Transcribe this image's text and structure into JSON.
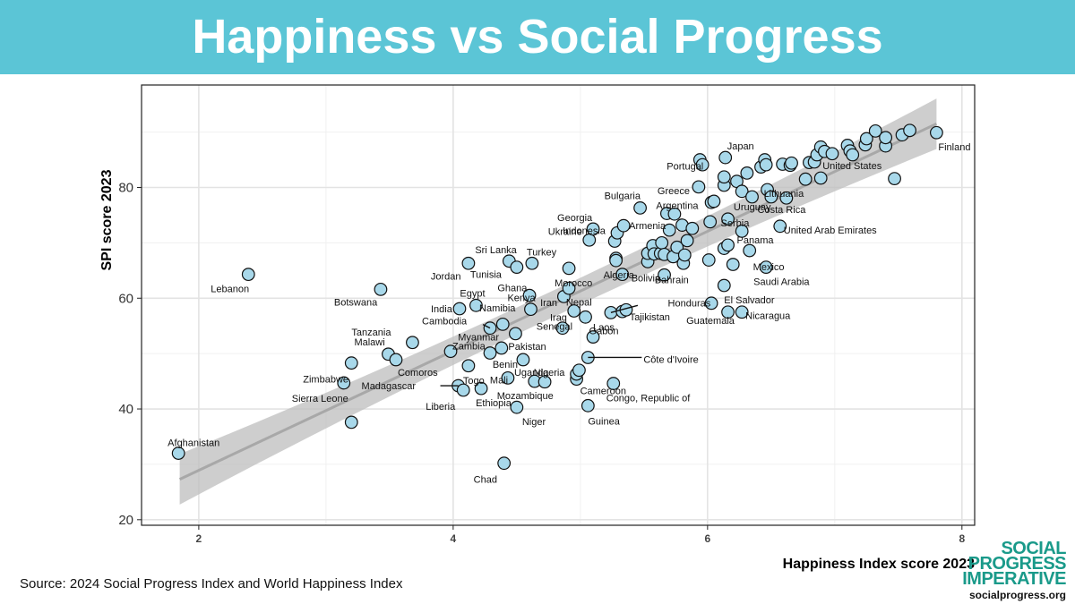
{
  "banner": {
    "title": "Happiness vs Social Progress",
    "color": "#5bc5d6"
  },
  "footer": {
    "source": "Source: 2024 Social Progress Index and World Happiness Index"
  },
  "logo": {
    "line1": "SOCIAL",
    "line2": "PROGRESS",
    "line3": "IMPERATIVE",
    "url": "socialprogress.org",
    "color": "#1a9a8a"
  },
  "chart_data": {
    "type": "scatter",
    "xlabel": "Happiness Index score 2023",
    "ylabel": "SPI score 2023",
    "xlim": [
      1.55,
      8.1
    ],
    "ylim": [
      19,
      98.5
    ],
    "xticks": [
      2,
      4,
      6,
      8
    ],
    "yticks": [
      20,
      40,
      60,
      80
    ],
    "grid": true,
    "point_color": "#a8d8ea",
    "trend": {
      "x": [
        1.85,
        7.8
      ],
      "y": [
        27.3,
        91.5
      ],
      "band": 2.4
    },
    "points": [
      {
        "x": 1.84,
        "y": 32.0,
        "label": "Afghanistan"
      },
      {
        "x": 2.39,
        "y": 64.3,
        "label": "Lebanon"
      },
      {
        "x": 3.14,
        "y": 44.7,
        "label": "Sierra Leone"
      },
      {
        "x": 3.2,
        "y": 48.3,
        "label": "Zimbabwe"
      },
      {
        "x": 3.2,
        "y": 37.6,
        "label": ""
      },
      {
        "x": 3.43,
        "y": 61.6,
        "label": "Botswana"
      },
      {
        "x": 3.49,
        "y": 49.9,
        "label": "Malawi"
      },
      {
        "x": 3.55,
        "y": 48.9,
        "label": "Comoros"
      },
      {
        "x": 3.68,
        "y": 52.0,
        "label": "Tanzania"
      },
      {
        "x": 3.98,
        "y": 50.4,
        "label": ""
      },
      {
        "x": 4.04,
        "y": 44.2,
        "label": "Madagascar"
      },
      {
        "x": 4.08,
        "y": 43.4,
        "label": "Liberia"
      },
      {
        "x": 4.05,
        "y": 58.1,
        "label": "India"
      },
      {
        "x": 4.12,
        "y": 47.8,
        "label": "Togo"
      },
      {
        "x": 4.12,
        "y": 66.3,
        "label": "Jordan"
      },
      {
        "x": 4.18,
        "y": 58.7,
        "label": "Egypt"
      },
      {
        "x": 4.22,
        "y": 43.7,
        "label": "Ethiopia"
      },
      {
        "x": 4.29,
        "y": 50.1,
        "label": "Zambia"
      },
      {
        "x": 4.29,
        "y": 54.6,
        "label": "Cambodia"
      },
      {
        "x": 4.38,
        "y": 51.0,
        "label": "Benin"
      },
      {
        "x": 4.39,
        "y": 55.3,
        "label": "Myanmar"
      },
      {
        "x": 4.4,
        "y": 30.2,
        "label": "Chad"
      },
      {
        "x": 4.43,
        "y": 45.6,
        "label": "Mali"
      },
      {
        "x": 4.44,
        "y": 66.7,
        "label": "Sri Lanka"
      },
      {
        "x": 4.5,
        "y": 65.6,
        "label": "Tunisia"
      },
      {
        "x": 4.5,
        "y": 40.3,
        "label": "Niger"
      },
      {
        "x": 4.49,
        "y": 53.6,
        "label": "Pakistan"
      },
      {
        "x": 4.55,
        "y": 48.9,
        "label": "Uganda"
      },
      {
        "x": 4.6,
        "y": 60.5,
        "label": "Namibia"
      },
      {
        "x": 4.61,
        "y": 58.0,
        "label": "Kenya"
      },
      {
        "x": 4.62,
        "y": 66.3,
        "label": "Turkey"
      },
      {
        "x": 4.64,
        "y": 45.0,
        "label": "Mozambique"
      },
      {
        "x": 4.72,
        "y": 44.9,
        "label": ""
      },
      {
        "x": 4.86,
        "y": 54.6,
        "label": "Iraq"
      },
      {
        "x": 4.87,
        "y": 60.3,
        "label": "Ghana"
      },
      {
        "x": 4.91,
        "y": 61.8,
        "label": "Iran"
      },
      {
        "x": 4.91,
        "y": 65.4,
        "label": "Morocco"
      },
      {
        "x": 4.95,
        "y": 57.7,
        "label": "Senegal"
      },
      {
        "x": 4.97,
        "y": 45.4,
        "label": "Cameroon"
      },
      {
        "x": 4.97,
        "y": 46.3,
        "label": "Nigeria"
      },
      {
        "x": 4.99,
        "y": 47.0,
        "label": ""
      },
      {
        "x": 5.04,
        "y": 56.6,
        "label": "Gabon"
      },
      {
        "x": 5.06,
        "y": 40.6,
        "label": "Guinea"
      },
      {
        "x": 5.06,
        "y": 49.3,
        "label": "Côte d'Ivoire"
      },
      {
        "x": 5.1,
        "y": 53.0,
        "label": "Laos"
      },
      {
        "x": 5.07,
        "y": 70.5,
        "label": "Ukraine"
      },
      {
        "x": 5.1,
        "y": 72.5,
        "label": "Georgia"
      },
      {
        "x": 5.24,
        "y": 57.4,
        "label": "Nepal"
      },
      {
        "x": 5.26,
        "y": 44.6,
        "label": "Congo, Republic of"
      },
      {
        "x": 5.27,
        "y": 70.3,
        "label": "Indonesia"
      },
      {
        "x": 5.28,
        "y": 67.2,
        "label": ""
      },
      {
        "x": 5.28,
        "y": 66.8,
        "label": "Algeria"
      },
      {
        "x": 5.29,
        "y": 71.8,
        "label": ""
      },
      {
        "x": 5.33,
        "y": 64.3,
        "label": "Bolivia"
      },
      {
        "x": 5.33,
        "y": 57.6,
        "label": "Tajikistan"
      },
      {
        "x": 5.34,
        "y": 73.1,
        "label": "Armenia"
      },
      {
        "x": 5.36,
        "y": 57.9,
        "label": ""
      },
      {
        "x": 5.47,
        "y": 76.3,
        "label": "Bulgaria"
      },
      {
        "x": 5.53,
        "y": 66.6,
        "label": ""
      },
      {
        "x": 5.53,
        "y": 68.1,
        "label": ""
      },
      {
        "x": 5.57,
        "y": 69.5,
        "label": ""
      },
      {
        "x": 5.58,
        "y": 68.0,
        "label": ""
      },
      {
        "x": 5.63,
        "y": 68.1,
        "label": ""
      },
      {
        "x": 5.64,
        "y": 70.0,
        "label": ""
      },
      {
        "x": 5.66,
        "y": 64.2,
        "label": "Honduras"
      },
      {
        "x": 5.66,
        "y": 67.9,
        "label": ""
      },
      {
        "x": 5.68,
        "y": 75.3,
        "label": "Argentina"
      },
      {
        "x": 5.7,
        "y": 72.3,
        "label": "Georgia2"
      },
      {
        "x": 5.73,
        "y": 67.5,
        "label": ""
      },
      {
        "x": 5.74,
        "y": 75.2,
        "label": ""
      },
      {
        "x": 5.76,
        "y": 69.2,
        "label": ""
      },
      {
        "x": 5.8,
        "y": 73.2,
        "label": ""
      },
      {
        "x": 5.81,
        "y": 66.3,
        "label": "Bahrain"
      },
      {
        "x": 5.82,
        "y": 67.8,
        "label": ""
      },
      {
        "x": 5.84,
        "y": 70.4,
        "label": ""
      },
      {
        "x": 5.88,
        "y": 72.6,
        "label": ""
      },
      {
        "x": 5.93,
        "y": 80.1,
        "label": "Greece"
      },
      {
        "x": 5.94,
        "y": 85.0,
        "label": ""
      },
      {
        "x": 5.96,
        "y": 84.1,
        "label": ""
      },
      {
        "x": 6.01,
        "y": 66.9,
        "label": ""
      },
      {
        "x": 6.02,
        "y": 73.8,
        "label": ""
      },
      {
        "x": 6.03,
        "y": 77.3,
        "label": ""
      },
      {
        "x": 6.03,
        "y": 59.1,
        "label": "Guatemala"
      },
      {
        "x": 6.05,
        "y": 77.5,
        "label": "Uruguay"
      },
      {
        "x": 6.13,
        "y": 80.4,
        "label": ""
      },
      {
        "x": 6.13,
        "y": 81.9,
        "label": "Portugal"
      },
      {
        "x": 6.13,
        "y": 62.3,
        "label": "El Salvador"
      },
      {
        "x": 6.13,
        "y": 69.0,
        "label": ""
      },
      {
        "x": 6.14,
        "y": 85.4,
        "label": "Japan"
      },
      {
        "x": 6.16,
        "y": 74.3,
        "label": "Serbia"
      },
      {
        "x": 6.16,
        "y": 69.6,
        "label": "Panama"
      },
      {
        "x": 6.16,
        "y": 57.5,
        "label": ""
      },
      {
        "x": 6.2,
        "y": 66.1,
        "label": ""
      },
      {
        "x": 6.23,
        "y": 81.1,
        "label": ""
      },
      {
        "x": 6.27,
        "y": 79.3,
        "label": ""
      },
      {
        "x": 6.27,
        "y": 72.1,
        "label": ""
      },
      {
        "x": 6.27,
        "y": 57.5,
        "label": "Nicaragua"
      },
      {
        "x": 6.31,
        "y": 82.6,
        "label": ""
      },
      {
        "x": 6.33,
        "y": 68.6,
        "label": "Mexico"
      },
      {
        "x": 6.35,
        "y": 78.3,
        "label": "Costa Rica"
      },
      {
        "x": 6.42,
        "y": 83.7,
        "label": ""
      },
      {
        "x": 6.45,
        "y": 85.0,
        "label": ""
      },
      {
        "x": 6.46,
        "y": 65.6,
        "label": "Saudi Arabia"
      },
      {
        "x": 6.46,
        "y": 84.1,
        "label": ""
      },
      {
        "x": 6.47,
        "y": 79.6,
        "label": "Lithuania"
      },
      {
        "x": 6.5,
        "y": 78.3,
        "label": ""
      },
      {
        "x": 6.57,
        "y": 73.0,
        "label": "United Arab Emirates"
      },
      {
        "x": 6.59,
        "y": 84.2,
        "label": ""
      },
      {
        "x": 6.62,
        "y": 78.1,
        "label": ""
      },
      {
        "x": 6.65,
        "y": 84.0,
        "label": ""
      },
      {
        "x": 6.66,
        "y": 84.4,
        "label": ""
      },
      {
        "x": 6.77,
        "y": 81.5,
        "label": ""
      },
      {
        "x": 6.8,
        "y": 84.5,
        "label": ""
      },
      {
        "x": 6.84,
        "y": 84.6,
        "label": ""
      },
      {
        "x": 6.86,
        "y": 85.9,
        "label": ""
      },
      {
        "x": 6.89,
        "y": 87.3,
        "label": ""
      },
      {
        "x": 6.89,
        "y": 81.7,
        "label": "United States"
      },
      {
        "x": 6.92,
        "y": 86.5,
        "label": ""
      },
      {
        "x": 6.98,
        "y": 86.1,
        "label": ""
      },
      {
        "x": 7.1,
        "y": 87.6,
        "label": ""
      },
      {
        "x": 7.12,
        "y": 86.6,
        "label": ""
      },
      {
        "x": 7.14,
        "y": 85.9,
        "label": ""
      },
      {
        "x": 7.24,
        "y": 87.7,
        "label": ""
      },
      {
        "x": 7.25,
        "y": 88.8,
        "label": ""
      },
      {
        "x": 7.32,
        "y": 90.2,
        "label": ""
      },
      {
        "x": 7.4,
        "y": 87.5,
        "label": ""
      },
      {
        "x": 7.4,
        "y": 89.0,
        "label": ""
      },
      {
        "x": 7.47,
        "y": 81.6,
        "label": ""
      },
      {
        "x": 7.53,
        "y": 89.5,
        "label": ""
      },
      {
        "x": 7.59,
        "y": 90.3,
        "label": ""
      },
      {
        "x": 7.8,
        "y": 89.9,
        "label": "Finland"
      }
    ]
  }
}
